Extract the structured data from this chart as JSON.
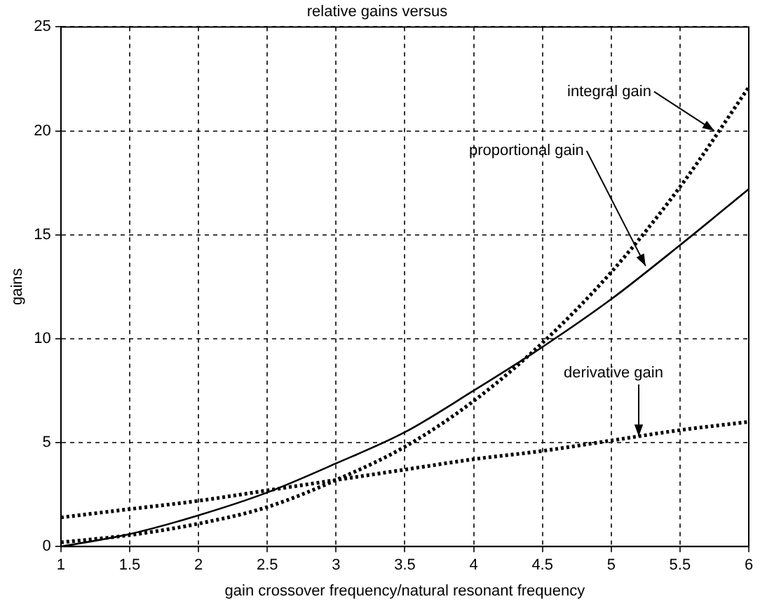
{
  "chart_data": {
    "type": "line",
    "title": "relative gains versus",
    "xlabel": "gain crossover frequency/natural resonant frequency",
    "ylabel": "gains",
    "x": [
      1,
      1.5,
      2,
      2.5,
      3,
      3.5,
      4,
      4.5,
      5,
      5.5,
      6
    ],
    "series": [
      {
        "color": "#000000",
        "line_style": "solid",
        "values": [
          0,
          0.6,
          1.5,
          2.6,
          4.0,
          5.5,
          7.5,
          9.6,
          11.9,
          14.5,
          17.2
        ]
      },
      {
        "color": "#000000",
        "line_style": "dotted",
        "values": [
          0.2,
          0.55,
          1.1,
          1.9,
          3.2,
          4.8,
          7.0,
          9.8,
          13.2,
          17.3,
          22.1
        ]
      },
      {
        "color": "#000000",
        "line_style": "dotted",
        "values": [
          1.4,
          1.8,
          2.2,
          2.7,
          3.2,
          3.7,
          4.2,
          4.6,
          5.1,
          5.6,
          6.0
        ]
      }
    ],
    "annotations": [
      {
        "text": "integral gain",
        "x": 5.75,
        "y": 20
      },
      {
        "text": "proportional gain",
        "x": 5.25,
        "y": 13.5
      },
      {
        "text": "derivative gain",
        "x": 5.2,
        "y": 5.3
      }
    ],
    "xlim": [
      1,
      6
    ],
    "xticks": [
      1,
      1.5,
      2,
      2.5,
      3,
      3.5,
      4,
      4.5,
      5,
      5.5,
      6
    ],
    "ylim": [
      0,
      25
    ],
    "yticks": [
      0,
      5,
      10,
      15,
      20,
      25
    ],
    "grid": true,
    "legend": false,
    "marker": "none"
  }
}
